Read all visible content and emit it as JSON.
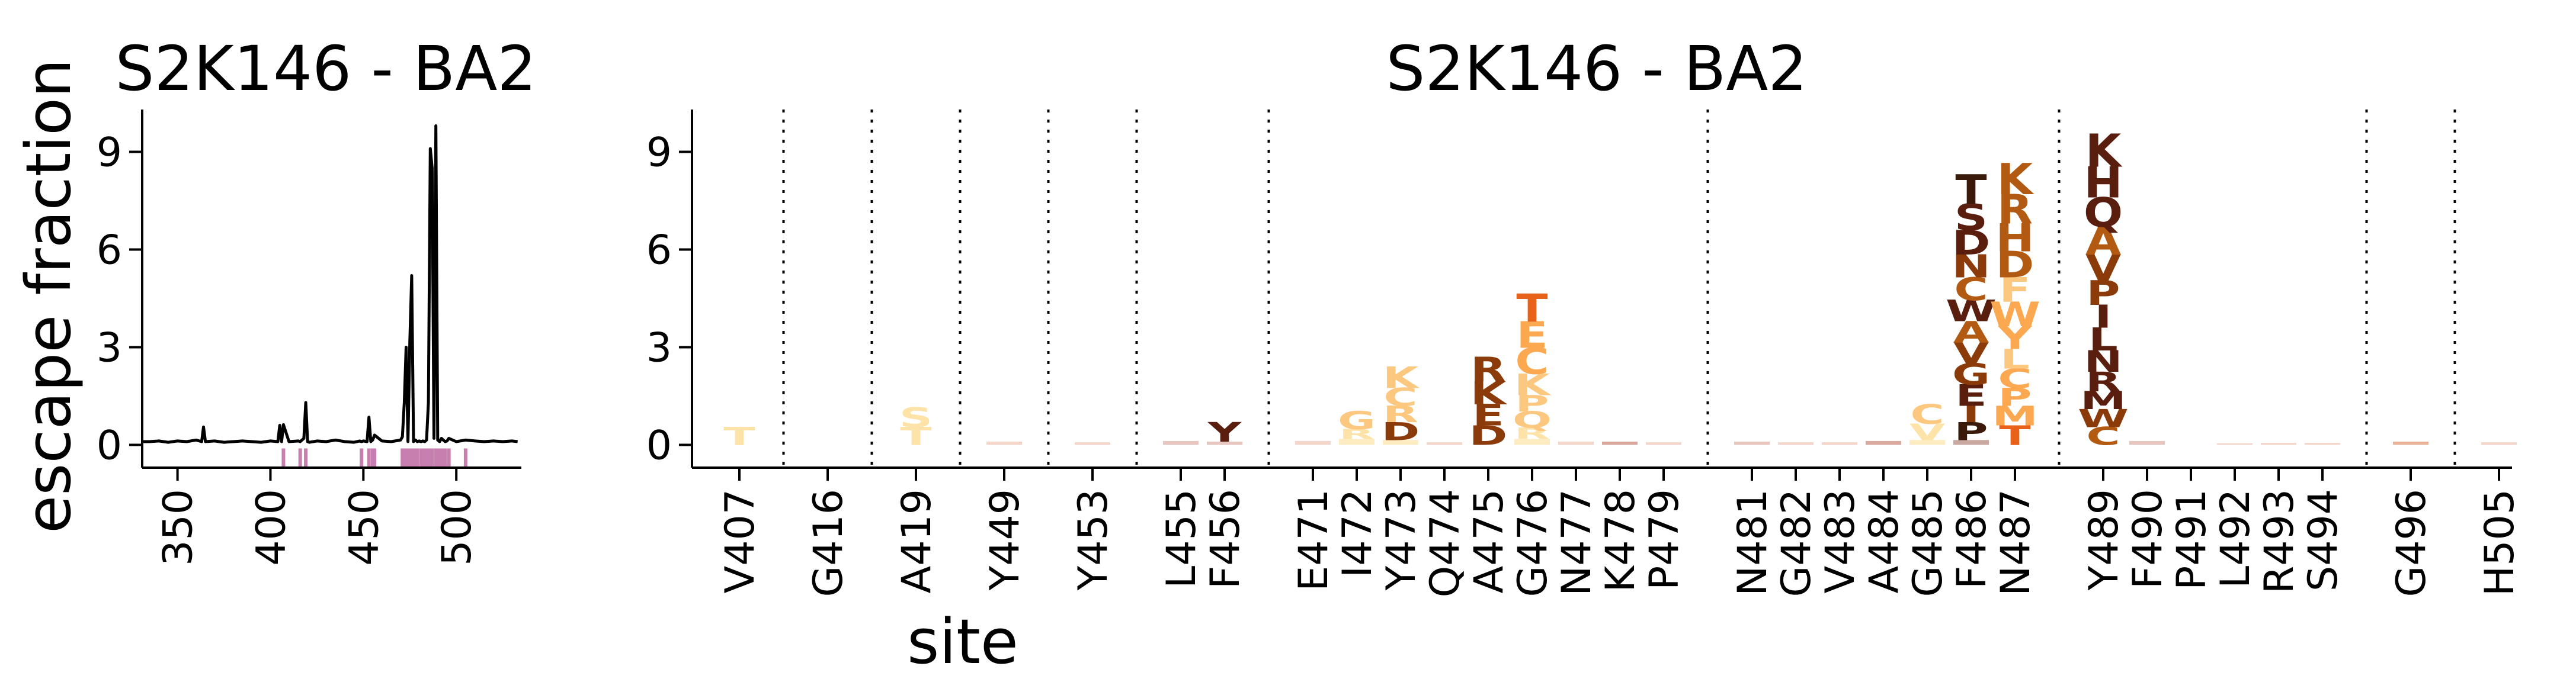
{
  "chart_data": [
    {
      "type": "line",
      "title": "S2K146 - BA2",
      "ylabel": "escape fraction",
      "xlabel": "",
      "xlim": [
        331,
        535
      ],
      "ylim": [
        -0.7,
        10.3
      ],
      "xticks": [
        350,
        400,
        450,
        500
      ],
      "yticks": [
        0,
        3,
        6,
        9
      ],
      "grid": false,
      "line_color": "#000000",
      "series": [
        {
          "x": [
            331,
            335,
            340,
            345,
            350,
            355,
            360,
            363,
            364,
            365,
            370,
            375,
            380,
            385,
            390,
            395,
            400,
            404,
            405,
            406,
            407,
            410,
            415,
            416,
            417,
            418,
            419,
            420,
            421,
            425,
            430,
            435,
            440,
            445,
            448,
            449,
            450,
            452,
            453,
            454,
            455,
            456,
            460,
            465,
            470,
            471,
            472,
            473,
            474,
            475,
            476,
            477,
            478,
            479,
            480,
            481,
            482,
            483,
            484,
            485,
            486,
            487,
            488,
            489,
            490,
            491,
            492,
            493,
            494,
            495,
            496,
            500,
            505,
            510,
            515,
            520,
            525,
            530,
            533
          ],
          "values": [
            0.1,
            0.1,
            0.12,
            0.08,
            0.12,
            0.1,
            0.15,
            0.1,
            0.55,
            0.1,
            0.12,
            0.08,
            0.1,
            0.12,
            0.1,
            0.08,
            0.12,
            0.1,
            0.6,
            0.1,
            0.62,
            0.1,
            0.12,
            0.1,
            0.15,
            0.2,
            1.3,
            0.1,
            0.08,
            0.12,
            0.1,
            0.15,
            0.1,
            0.08,
            0.12,
            0.1,
            0.12,
            0.1,
            0.85,
            0.1,
            0.15,
            0.3,
            0.12,
            0.1,
            0.15,
            0.25,
            1.3,
            3.0,
            0.1,
            3.2,
            5.2,
            0.1,
            0.15,
            0.1,
            0.12,
            0.1,
            0.12,
            0.1,
            0.15,
            1.3,
            9.1,
            8.5,
            0.2,
            9.8,
            0.15,
            0.1,
            0.2,
            0.15,
            0.1,
            0.12,
            0.2,
            0.1,
            0.15,
            0.12,
            0.1,
            0.12,
            0.1,
            0.12,
            0.1
          ]
        }
      ],
      "highlight_sites": [
        407,
        416,
        419,
        449,
        453,
        455,
        456,
        471,
        472,
        473,
        474,
        475,
        476,
        477,
        478,
        479,
        481,
        482,
        483,
        484,
        485,
        486,
        487,
        489,
        490,
        491,
        492,
        493,
        494,
        496,
        505
      ],
      "highlight_color": "#c67fae"
    },
    {
      "type": "logo",
      "title": "S2K146 - BA2",
      "xlabel": "site",
      "ylabel": "",
      "ylim": [
        -0.7,
        10.3
      ],
      "yticks": [
        0,
        3,
        6,
        9
      ],
      "grid": false,
      "sites": [
        {
          "label": "V407",
          "letters": [
            {
              "l": "T",
              "h": 0.55,
              "c": "#fde3a7"
            }
          ]
        },
        {
          "sep": true
        },
        {
          "label": "G416",
          "letters": []
        },
        {
          "sep": true
        },
        {
          "label": "A419",
          "letters": [
            {
              "l": "T",
              "h": 0.55,
              "c": "#fde3a7"
            },
            {
              "l": "S",
              "h": 0.6,
              "c": "#fde3a7"
            }
          ]
        },
        {
          "sep": true
        },
        {
          "label": "Y449",
          "letters": [
            {
              "l": "",
              "h": 0.1,
              "c": "#f3d5c9"
            }
          ]
        },
        {
          "sep": true
        },
        {
          "label": "Y453",
          "letters": [
            {
              "l": "",
              "h": 0.08,
              "c": "#f3d5c9"
            }
          ]
        },
        {
          "sep": true
        },
        {
          "label": "L455",
          "letters": [
            {
              "l": "",
              "h": 0.12,
              "c": "#e8c6c0"
            }
          ]
        },
        {
          "label": "F456",
          "letters": [
            {
              "l": "",
              "h": 0.1,
              "c": "#e8c6c0"
            },
            {
              "l": "Y",
              "h": 0.6,
              "c": "#5a1e0f"
            }
          ]
        },
        {
          "sep": true
        },
        {
          "label": "E471",
          "letters": [
            {
              "l": "",
              "h": 0.12,
              "c": "#f3d5c9"
            }
          ]
        },
        {
          "label": "I472",
          "letters": [
            {
              "l": "",
              "h": 0.18,
              "c": "#fdebc2"
            },
            {
              "l": "R",
              "h": 0.3,
              "c": "#fde3a7"
            },
            {
              "l": "G",
              "h": 0.55,
              "c": "#fcc880"
            }
          ]
        },
        {
          "label": "Y473",
          "letters": [
            {
              "l": "",
              "h": 0.15,
              "c": "#fdebc2"
            },
            {
              "l": "D",
              "h": 0.55,
              "c": "#8b3a0a"
            },
            {
              "l": "R",
              "h": 0.5,
              "c": "#fcc880"
            },
            {
              "l": "C",
              "h": 0.55,
              "c": "#fcc880"
            },
            {
              "l": "K",
              "h": 0.65,
              "c": "#fcc880"
            }
          ]
        },
        {
          "label": "Q474",
          "letters": [
            {
              "l": "",
              "h": 0.08,
              "c": "#f3d5c9"
            }
          ]
        },
        {
          "label": "A475",
          "letters": [
            {
              "l": "D",
              "h": 0.6,
              "c": "#8b3a0a"
            },
            {
              "l": "E",
              "h": 0.65,
              "c": "#8b3a0a"
            },
            {
              "l": "K",
              "h": 0.7,
              "c": "#8b3a0a"
            },
            {
              "l": "R",
              "h": 0.75,
              "c": "#8b3a0a"
            }
          ]
        },
        {
          "label": "G476",
          "letters": [
            {
              "l": "",
              "h": 0.18,
              "c": "#fdebc2"
            },
            {
              "l": "R",
              "h": 0.35,
              "c": "#fde3a7"
            },
            {
              "l": "Q",
              "h": 0.5,
              "c": "#fcc880"
            },
            {
              "l": "P",
              "h": 0.5,
              "c": "#fcc880"
            },
            {
              "l": "K",
              "h": 0.65,
              "c": "#fcc880"
            },
            {
              "l": "C",
              "h": 0.8,
              "c": "#fca850"
            },
            {
              "l": "E",
              "h": 0.8,
              "c": "#fca850"
            },
            {
              "l": "T",
              "h": 0.85,
              "c": "#e8621a"
            }
          ]
        },
        {
          "label": "N477",
          "letters": [
            {
              "l": "",
              "h": 0.1,
              "c": "#f3d5c9"
            }
          ]
        },
        {
          "label": "K478",
          "letters": [
            {
              "l": "",
              "h": 0.1,
              "c": "#d9a9a0"
            }
          ]
        },
        {
          "label": "P479",
          "letters": [
            {
              "l": "",
              "h": 0.08,
              "c": "#f3d5c9"
            }
          ]
        },
        {
          "sep": true
        },
        {
          "label": "N481",
          "letters": [
            {
              "l": "",
              "h": 0.1,
              "c": "#e8c6c0"
            }
          ]
        },
        {
          "label": "G482",
          "letters": [
            {
              "l": "",
              "h": 0.08,
              "c": "#f3d5c9"
            }
          ]
        },
        {
          "label": "V483",
          "letters": [
            {
              "l": "",
              "h": 0.08,
              "c": "#f3d5c9"
            }
          ]
        },
        {
          "label": "A484",
          "letters": [
            {
              "l": "",
              "h": 0.12,
              "c": "#d9a9a0"
            }
          ]
        },
        {
          "label": "G485",
          "letters": [
            {
              "l": "",
              "h": 0.15,
              "c": "#fdebc2"
            },
            {
              "l": "V",
              "h": 0.5,
              "c": "#fde3a7"
            },
            {
              "l": "C",
              "h": 0.6,
              "c": "#fcc880"
            }
          ]
        },
        {
          "label": "F486",
          "letters": [
            {
              "l": "",
              "h": 0.15,
              "c": "#c9a9a0"
            },
            {
              "l": "P",
              "h": 0.55,
              "c": "#3a1a0a"
            },
            {
              "l": "I",
              "h": 0.5,
              "c": "#8b3a0a"
            },
            {
              "l": "E",
              "h": 0.65,
              "c": "#5a1e0f"
            },
            {
              "l": "G",
              "h": 0.65,
              "c": "#8b3a0a"
            },
            {
              "l": "V",
              "h": 0.65,
              "c": "#8b3a0a"
            },
            {
              "l": "A",
              "h": 0.65,
              "c": "#b35a12"
            },
            {
              "l": "W",
              "h": 0.65,
              "c": "#5a1e0f"
            },
            {
              "l": "C",
              "h": 0.7,
              "c": "#b35a12"
            },
            {
              "l": "N",
              "h": 0.7,
              "c": "#8b3a0a"
            },
            {
              "l": "D",
              "h": 0.75,
              "c": "#5a1e0f"
            },
            {
              "l": "S",
              "h": 0.8,
              "c": "#5a1e0f"
            },
            {
              "l": "T",
              "h": 0.9,
              "c": "#3a1a0a"
            }
          ]
        },
        {
          "label": "N487",
          "letters": [
            {
              "l": "T",
              "h": 0.6,
              "c": "#e8621a"
            },
            {
              "l": "M",
              "h": 0.6,
              "c": "#fca850"
            },
            {
              "l": "P",
              "h": 0.55,
              "c": "#fca850"
            },
            {
              "l": "C",
              "h": 0.6,
              "c": "#fca850"
            },
            {
              "l": "L",
              "h": 0.6,
              "c": "#fcc880"
            },
            {
              "l": "Y",
              "h": 0.7,
              "c": "#fca850"
            },
            {
              "l": "W",
              "h": 0.75,
              "c": "#fca850"
            },
            {
              "l": "F",
              "h": 0.75,
              "c": "#fcc880"
            },
            {
              "l": "D",
              "h": 0.8,
              "c": "#b35a12"
            },
            {
              "l": "H",
              "h": 0.85,
              "c": "#b35a12"
            },
            {
              "l": "R",
              "h": 0.9,
              "c": "#b35a12"
            },
            {
              "l": "K",
              "h": 0.95,
              "c": "#b35a12"
            }
          ]
        },
        {
          "sep": true
        },
        {
          "label": "Y489",
          "letters": [
            {
              "l": "C",
              "h": 0.55,
              "c": "#b35a12"
            },
            {
              "l": "W",
              "h": 0.55,
              "c": "#8b3a0a"
            },
            {
              "l": "M",
              "h": 0.55,
              "c": "#5a1e0f"
            },
            {
              "l": "R",
              "h": 0.6,
              "c": "#5a1e0f"
            },
            {
              "l": "N",
              "h": 0.65,
              "c": "#5a1e0f"
            },
            {
              "l": "L",
              "h": 0.7,
              "c": "#5a1e0f"
            },
            {
              "l": "I",
              "h": 0.7,
              "c": "#5a1e0f"
            },
            {
              "l": "P",
              "h": 0.75,
              "c": "#8b3a0a"
            },
            {
              "l": "V",
              "h": 0.8,
              "c": "#8b3a0a"
            },
            {
              "l": "A",
              "h": 0.85,
              "c": "#b35a12"
            },
            {
              "l": "Q",
              "h": 0.9,
              "c": "#5a1e0f"
            },
            {
              "l": "H",
              "h": 0.95,
              "c": "#5a1e0f"
            },
            {
              "l": "K",
              "h": 1.0,
              "c": "#5a1e0f"
            }
          ]
        },
        {
          "label": "F490",
          "letters": [
            {
              "l": "",
              "h": 0.12,
              "c": "#e8c6c0"
            }
          ]
        },
        {
          "label": "P491",
          "letters": []
        },
        {
          "label": "L492",
          "letters": [
            {
              "l": "",
              "h": 0.05,
              "c": "#f3d5c9"
            }
          ]
        },
        {
          "label": "R493",
          "letters": [
            {
              "l": "",
              "h": 0.06,
              "c": "#f3d5c9"
            }
          ]
        },
        {
          "label": "S494",
          "letters": [
            {
              "l": "",
              "h": 0.06,
              "c": "#f3d5c9"
            }
          ]
        },
        {
          "sep": true
        },
        {
          "label": "G496",
          "letters": [
            {
              "l": "",
              "h": 0.1,
              "c": "#e8b49a"
            }
          ]
        },
        {
          "sep": true
        },
        {
          "label": "H505",
          "letters": [
            {
              "l": "",
              "h": 0.08,
              "c": "#f3d5c9"
            }
          ]
        }
      ]
    }
  ]
}
